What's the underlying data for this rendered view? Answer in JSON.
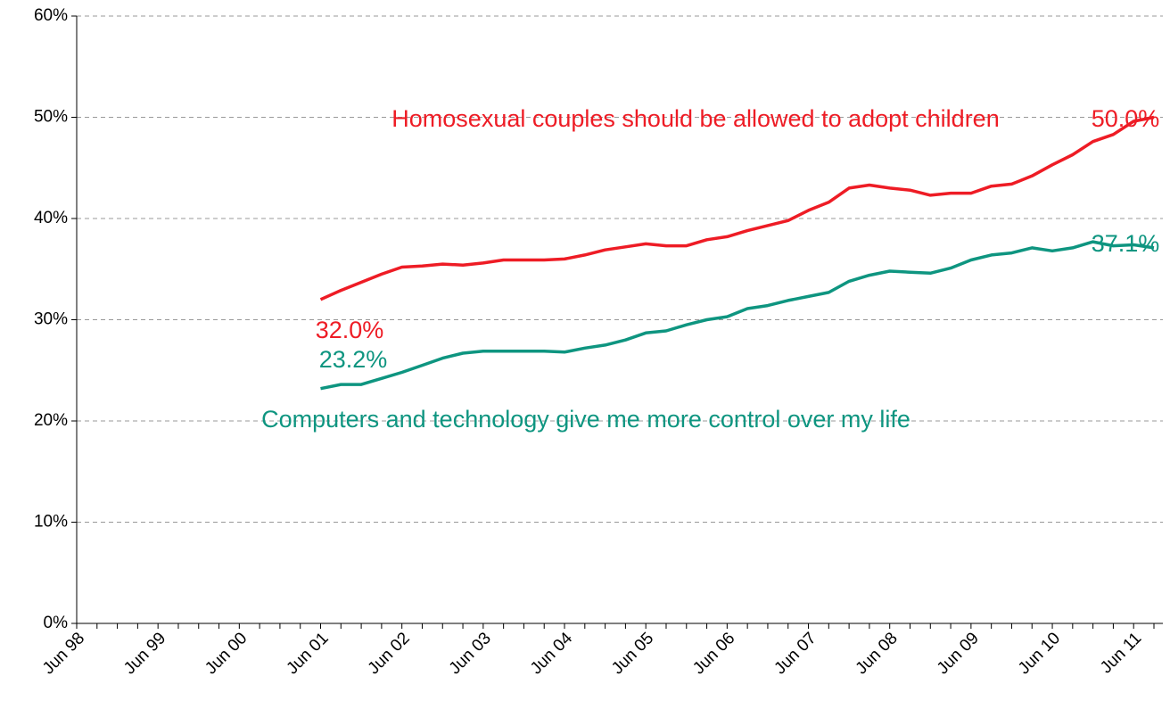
{
  "chart_data": {
    "type": "line",
    "categories": [
      "Jun 98",
      null,
      null,
      null,
      "Jun 99",
      null,
      null,
      null,
      "Jun 00",
      null,
      null,
      null,
      "Jun 01",
      null,
      null,
      null,
      "Jun 02",
      null,
      null,
      null,
      "Jun 03",
      null,
      null,
      null,
      "Jun 04",
      null,
      null,
      null,
      "Jun 05",
      null,
      null,
      null,
      "Jun 06",
      null,
      null,
      null,
      "Jun 07",
      null,
      null,
      null,
      "Jun 08",
      null,
      null,
      null,
      "Jun 09",
      null,
      null,
      null,
      "Jun 10",
      null,
      null,
      null,
      "Jun 11",
      null
    ],
    "series": [
      {
        "name": "Homosexual couples should be allowed to adopt children",
        "color": "#ee1c25",
        "values": [
          null,
          null,
          null,
          null,
          null,
          null,
          null,
          null,
          null,
          null,
          null,
          null,
          32.0,
          32.9,
          33.7,
          34.5,
          35.2,
          35.3,
          35.5,
          35.4,
          35.6,
          35.9,
          35.9,
          35.9,
          36.0,
          36.4,
          36.9,
          37.2,
          37.5,
          37.3,
          37.3,
          37.9,
          38.2,
          38.8,
          39.3,
          39.8,
          40.8,
          41.6,
          43.0,
          43.3,
          43.0,
          42.8,
          42.3,
          42.5,
          42.5,
          43.2,
          43.4,
          44.2,
          45.3,
          46.3,
          47.6,
          48.3,
          49.6,
          50.0
        ],
        "value_labels": [
          null,
          null,
          null,
          null,
          null,
          null,
          null,
          null,
          null,
          null,
          null,
          null,
          "32.0%",
          null,
          null,
          null,
          null,
          null,
          null,
          null,
          null,
          null,
          null,
          null,
          null,
          null,
          null,
          null,
          null,
          null,
          null,
          null,
          null,
          null,
          null,
          null,
          null,
          null,
          null,
          null,
          null,
          null,
          null,
          null,
          null,
          null,
          null,
          null,
          null,
          null,
          null,
          null,
          null,
          "50.0%"
        ]
      },
      {
        "name": "Computers and technology give me more control over my life",
        "color": "#0e9580",
        "values": [
          null,
          null,
          null,
          null,
          null,
          null,
          null,
          null,
          null,
          null,
          null,
          null,
          23.2,
          23.6,
          23.6,
          24.2,
          24.8,
          25.5,
          26.2,
          26.7,
          26.9,
          26.9,
          26.9,
          26.9,
          26.8,
          27.2,
          27.5,
          28.0,
          28.7,
          28.9,
          29.5,
          30.0,
          30.3,
          31.1,
          31.4,
          31.9,
          32.3,
          32.7,
          33.8,
          34.4,
          34.8,
          34.7,
          34.6,
          35.1,
          35.9,
          36.4,
          36.6,
          37.1,
          36.8,
          37.1,
          37.7,
          37.3,
          37.4,
          37.1
        ],
        "value_labels": [
          null,
          null,
          null,
          null,
          null,
          null,
          null,
          null,
          null,
          null,
          null,
          null,
          "23.2%",
          null,
          null,
          null,
          null,
          null,
          null,
          null,
          null,
          null,
          null,
          null,
          null,
          null,
          null,
          null,
          null,
          null,
          null,
          null,
          null,
          null,
          null,
          null,
          null,
          null,
          null,
          null,
          null,
          null,
          null,
          null,
          null,
          null,
          null,
          null,
          null,
          null,
          null,
          null,
          null,
          "37.1%"
        ]
      }
    ],
    "ylim": [
      0,
      60
    ],
    "yticks": [
      {
        "value": 0,
        "label": "0%"
      },
      {
        "value": 10,
        "label": "10%"
      },
      {
        "value": 20,
        "label": "20%"
      },
      {
        "value": 30,
        "label": "30%"
      },
      {
        "value": 40,
        "label": "40%"
      },
      {
        "value": 50,
        "label": "50%"
      },
      {
        "value": 60,
        "label": "60%"
      }
    ],
    "grid": true
  }
}
